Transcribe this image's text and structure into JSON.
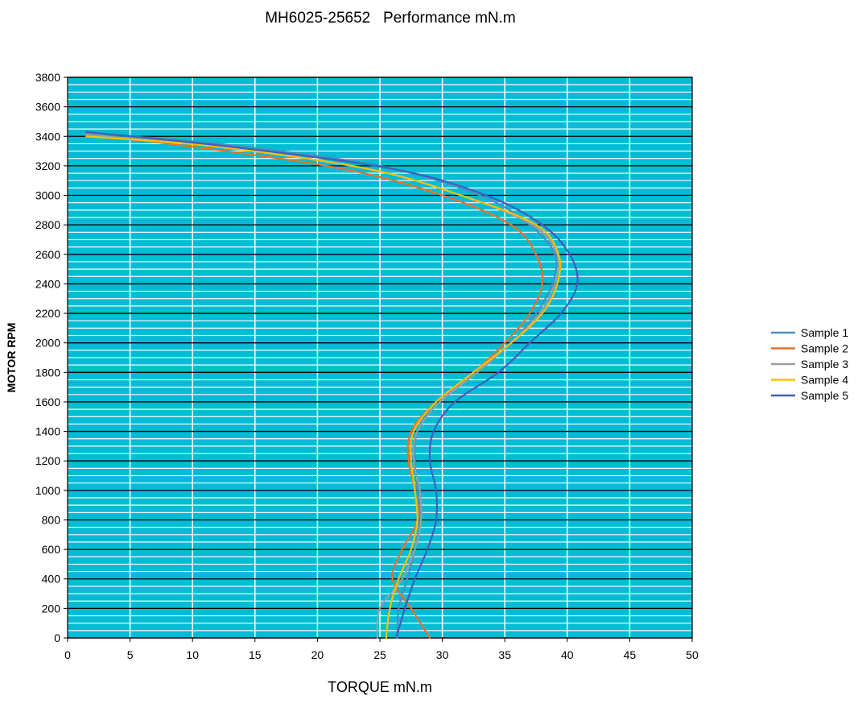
{
  "chart_data": {
    "type": "line",
    "title": "MH6025-25652   Performance mN.m",
    "xlabel": "TORQUE mN.m",
    "ylabel": "MOTOR RPM",
    "xlim": [
      0,
      50
    ],
    "ylim": [
      0,
      3800
    ],
    "x_ticks": [
      0,
      5,
      10,
      15,
      20,
      25,
      30,
      35,
      40,
      45,
      50
    ],
    "y_ticks": [
      0,
      200,
      400,
      600,
      800,
      1000,
      1200,
      1400,
      1600,
      1800,
      2000,
      2200,
      2400,
      2600,
      2800,
      3000,
      3200,
      3400,
      3600,
      3800
    ],
    "y_minor_step": 50,
    "grid": true,
    "plot_background": "#00bcd4",
    "legend_position": "right",
    "series": [
      {
        "name": "Sample 1",
        "color": "#4a90c2",
        "points": [
          [
            26.4,
            0
          ],
          [
            26.5,
            200
          ],
          [
            27.2,
            400
          ],
          [
            27.8,
            600
          ],
          [
            28.2,
            800
          ],
          [
            28.0,
            1000
          ],
          [
            27.8,
            1200
          ],
          [
            28.0,
            1400
          ],
          [
            29.5,
            1600
          ],
          [
            32.5,
            1800
          ],
          [
            35.5,
            2000
          ],
          [
            37.5,
            2200
          ],
          [
            38.8,
            2400
          ],
          [
            39.0,
            2600
          ],
          [
            37.0,
            2800
          ],
          [
            33.0,
            3000
          ],
          [
            25.0,
            3200
          ],
          [
            12.0,
            3350
          ],
          [
            1.5,
            3420
          ]
        ]
      },
      {
        "name": "Sample 2",
        "color": "#e8732a",
        "points": [
          [
            29.0,
            0
          ],
          [
            27.5,
            200
          ],
          [
            26.0,
            400
          ],
          [
            26.8,
            600
          ],
          [
            28.0,
            800
          ],
          [
            27.8,
            1000
          ],
          [
            27.3,
            1200
          ],
          [
            27.5,
            1400
          ],
          [
            29.5,
            1600
          ],
          [
            32.5,
            1800
          ],
          [
            35.0,
            2000
          ],
          [
            37.0,
            2200
          ],
          [
            38.0,
            2400
          ],
          [
            37.5,
            2600
          ],
          [
            35.5,
            2800
          ],
          [
            30.0,
            3000
          ],
          [
            22.0,
            3180
          ],
          [
            10.0,
            3330
          ],
          [
            1.5,
            3410
          ]
        ]
      },
      {
        "name": "Sample 3",
        "color": "#9e9e9e",
        "points": [
          [
            24.8,
            0
          ],
          [
            25.0,
            200
          ],
          [
            26.8,
            400
          ],
          [
            27.8,
            600
          ],
          [
            28.3,
            800
          ],
          [
            28.2,
            1000
          ],
          [
            27.7,
            1200
          ],
          [
            28.0,
            1400
          ],
          [
            29.8,
            1600
          ],
          [
            32.8,
            1800
          ],
          [
            35.5,
            2000
          ],
          [
            37.8,
            2200
          ],
          [
            39.0,
            2400
          ],
          [
            39.2,
            2600
          ],
          [
            37.2,
            2800
          ],
          [
            31.5,
            3000
          ],
          [
            24.0,
            3180
          ],
          [
            12.0,
            3330
          ],
          [
            1.5,
            3410
          ]
        ]
      },
      {
        "name": "Sample 4",
        "color": "#ffc000",
        "points": [
          [
            25.5,
            0
          ],
          [
            25.8,
            200
          ],
          [
            26.5,
            400
          ],
          [
            27.5,
            600
          ],
          [
            28.0,
            800
          ],
          [
            27.8,
            1000
          ],
          [
            27.5,
            1200
          ],
          [
            27.7,
            1400
          ],
          [
            29.5,
            1600
          ],
          [
            32.5,
            1800
          ],
          [
            35.5,
            2000
          ],
          [
            38.0,
            2200
          ],
          [
            39.2,
            2400
          ],
          [
            39.3,
            2600
          ],
          [
            37.5,
            2800
          ],
          [
            31.5,
            3000
          ],
          [
            24.0,
            3180
          ],
          [
            12.0,
            3330
          ],
          [
            1.5,
            3400
          ]
        ]
      },
      {
        "name": "Sample 5",
        "color": "#3f5fbf",
        "points": [
          [
            26.3,
            0
          ],
          [
            27.0,
            200
          ],
          [
            27.8,
            400
          ],
          [
            28.8,
            600
          ],
          [
            29.5,
            800
          ],
          [
            29.5,
            1000
          ],
          [
            29.0,
            1200
          ],
          [
            29.3,
            1400
          ],
          [
            31.0,
            1600
          ],
          [
            34.5,
            1800
          ],
          [
            37.0,
            2000
          ],
          [
            39.5,
            2200
          ],
          [
            40.8,
            2400
          ],
          [
            40.2,
            2600
          ],
          [
            38.0,
            2800
          ],
          [
            33.5,
            3000
          ],
          [
            26.0,
            3180
          ],
          [
            13.0,
            3330
          ],
          [
            1.5,
            3430
          ]
        ]
      }
    ]
  }
}
